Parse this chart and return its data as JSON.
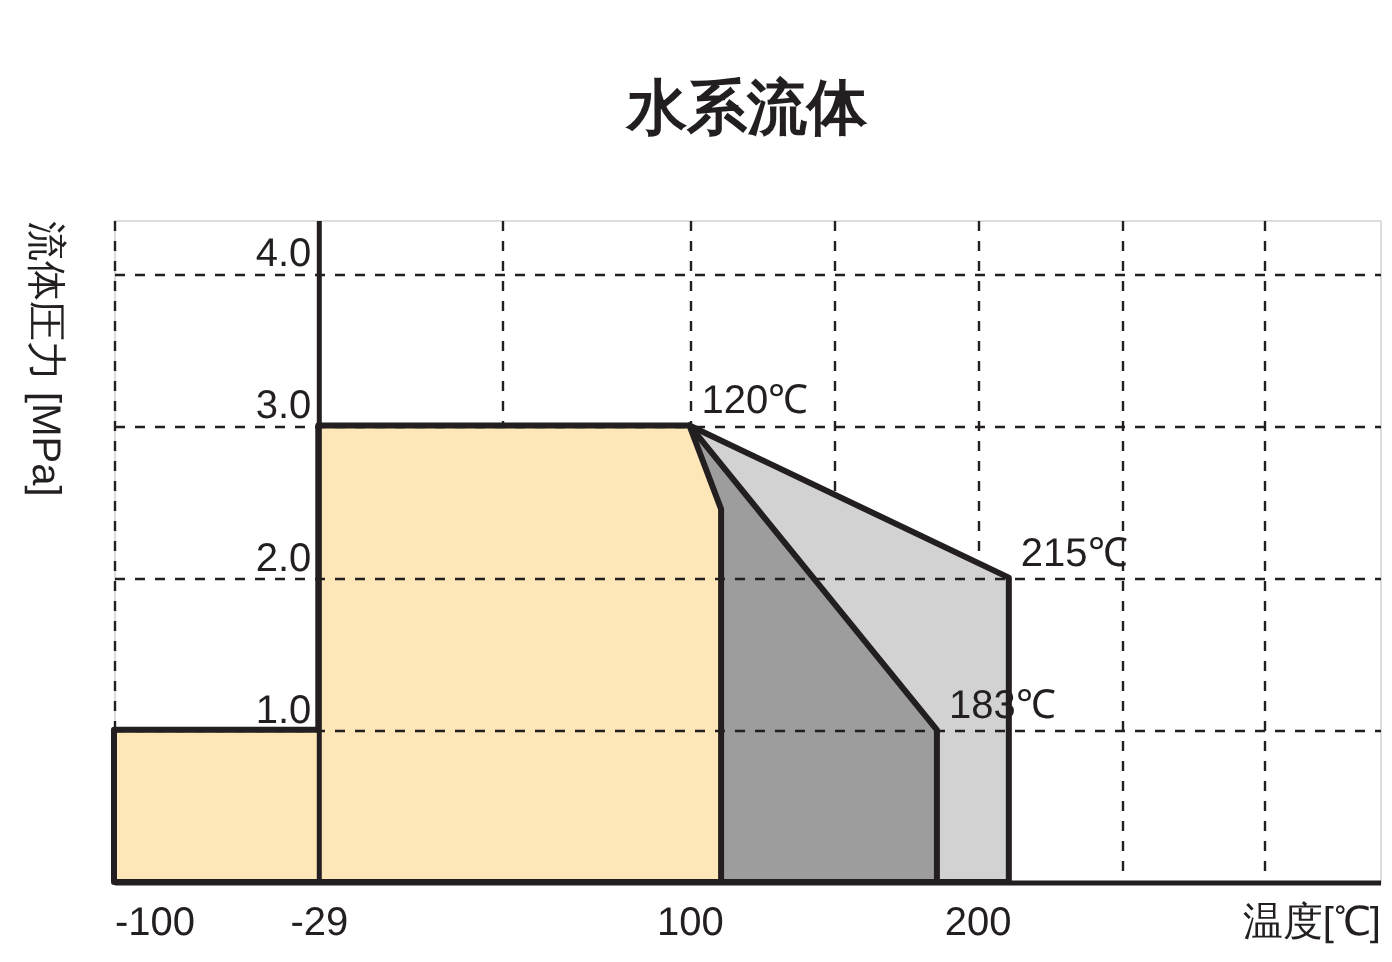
{
  "chart_data": {
    "type": "area",
    "title": "水系流体",
    "xlabel": "温度[℃]",
    "ylabel": "流体圧力 [MPa]",
    "series": [
      {
        "x": [
          100,
          211,
          211
        ],
        "values": [
          3.0,
          2.0,
          0
        ],
        "color": "#d2d2d2"
      },
      {
        "x": [
          100,
          186,
          186
        ],
        "values": [
          3.0,
          1.0,
          0
        ],
        "color": "#9d9d9d"
      },
      {
        "x": [
          -100,
          -100,
          -29,
          -29,
          100,
          111,
          111
        ],
        "values": [
          0,
          1.0,
          1.0,
          3.0,
          3.0,
          2.45,
          0
        ],
        "color": "#fde6b8"
      }
    ],
    "xlim": [
      -100,
      340
    ],
    "xticks": [
      -100,
      -29,
      {
        "value": 35,
        "label": null
      },
      100,
      {
        "value": 150,
        "label": null
      },
      200,
      {
        "value": 250,
        "label": null
      },
      {
        "value": 300,
        "label": null
      }
    ],
    "ylim": [
      0,
      4.35
    ],
    "yticks": [
      {
        "value": 1,
        "label": "1.0"
      },
      {
        "value": 2,
        "label": "2.0"
      },
      {
        "value": 3,
        "label": "3.0"
      },
      {
        "value": 4,
        "label": "4.0"
      }
    ],
    "grid": true,
    "annotations": [
      {
        "text": "120℃",
        "x": 100,
        "y": 3.0
      },
      {
        "text": "215℃",
        "x": 211,
        "y": 2.0
      },
      {
        "text": "183℃",
        "x": 186,
        "y": 1.0
      }
    ]
  }
}
